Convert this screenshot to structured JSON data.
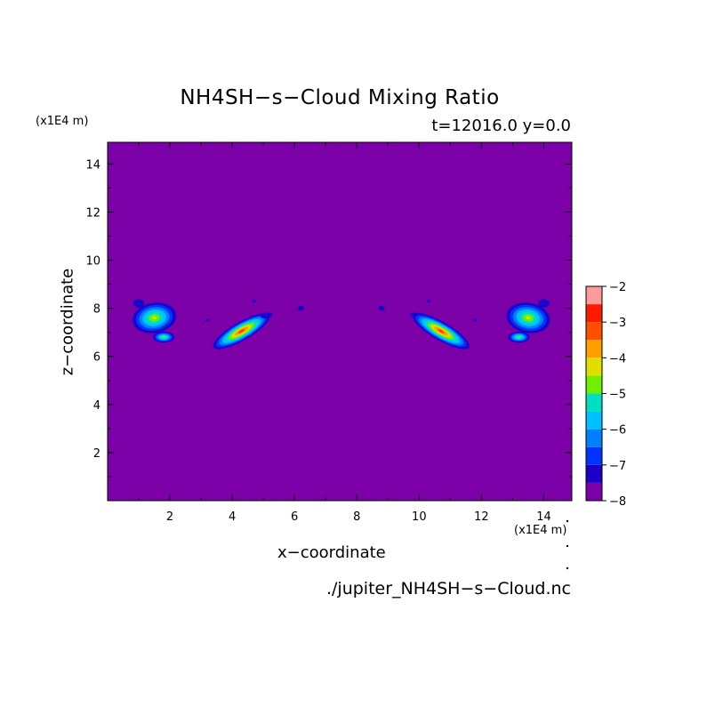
{
  "chart_data": {
    "type": "heatmap",
    "title": "NH4SH−s−Cloud Mixing Ratio",
    "subtitle": "t=12016.0 y=0.0",
    "xlabel": "x−coordinate",
    "ylabel": "z−coordinate",
    "x_unit": "(x1E4 m)",
    "y_unit": "(x1E4 m)",
    "source": "./jupiter_NH4SH−s−Cloud.nc",
    "xlim": [
      0,
      14.9
    ],
    "ylim": [
      0,
      14.9
    ],
    "x_ticks": [
      2,
      4,
      6,
      8,
      10,
      12,
      14
    ],
    "y_ticks": [
      2,
      4,
      6,
      8,
      10,
      12,
      14
    ],
    "x_tick_labels": [
      "2",
      "4",
      "6",
      "8",
      "10",
      "12",
      "14"
    ],
    "y_tick_labels": [
      "2",
      "4",
      "6",
      "8",
      "10",
      "12",
      "14"
    ],
    "background_color": "#7b00a8",
    "colorbar": {
      "levels": [
        -8,
        -7.5,
        -7,
        -6.5,
        -6,
        -5.5,
        -5,
        -4.5,
        -4,
        -3.5,
        -3,
        -2.5,
        -2
      ],
      "colors": [
        "#7b00a8",
        "#1a00c8",
        "#0033ff",
        "#0080ff",
        "#00c0ff",
        "#00e0c0",
        "#70f000",
        "#e0e000",
        "#ffa000",
        "#ff5000",
        "#ff1a00",
        "#ff9a9a"
      ],
      "labels": [
        "−2",
        "−3",
        "−4",
        "−5",
        "−6",
        "−7",
        "−8"
      ],
      "label_values": [
        -2,
        -3,
        -4,
        -5,
        -6,
        -7,
        -8
      ]
    },
    "cloud_blobs": [
      {
        "x": 1.5,
        "z": 7.6,
        "sx": 0.9,
        "sz": 0.8,
        "angle": -10,
        "peak": -4.2
      },
      {
        "x": 1.0,
        "z": 8.2,
        "sx": 0.5,
        "sz": 0.5,
        "angle": 0,
        "peak": -7.0
      },
      {
        "x": 1.8,
        "z": 6.8,
        "sx": 0.45,
        "sz": 0.3,
        "angle": 0,
        "peak": -4.6
      },
      {
        "x": 3.2,
        "z": 7.5,
        "sx": 0.28,
        "sz": 0.24,
        "angle": 0,
        "peak": -7.2
      },
      {
        "x": 4.3,
        "z": 7.05,
        "sx": 1.25,
        "sz": 0.45,
        "angle": -30,
        "peak": -2.9
      },
      {
        "x": 4.7,
        "z": 8.3,
        "sx": 0.28,
        "sz": 0.25,
        "angle": 0,
        "peak": -7.2
      },
      {
        "x": 5.1,
        "z": 7.7,
        "sx": 0.55,
        "sz": 0.32,
        "angle": -10,
        "peak": -7.0
      },
      {
        "x": 6.2,
        "z": 8.0,
        "sx": 0.35,
        "sz": 0.3,
        "angle": -20,
        "peak": -7.1
      },
      {
        "x": 8.8,
        "z": 8.0,
        "sx": 0.35,
        "sz": 0.3,
        "angle": 20,
        "peak": -7.1
      },
      {
        "x": 9.9,
        "z": 7.7,
        "sx": 0.55,
        "sz": 0.32,
        "angle": 10,
        "peak": -7.0
      },
      {
        "x": 10.3,
        "z": 8.3,
        "sx": 0.28,
        "sz": 0.25,
        "angle": 0,
        "peak": -7.2
      },
      {
        "x": 10.7,
        "z": 7.05,
        "sx": 1.25,
        "sz": 0.45,
        "angle": 30,
        "peak": -2.9
      },
      {
        "x": 11.8,
        "z": 7.5,
        "sx": 0.28,
        "sz": 0.24,
        "angle": 0,
        "peak": -7.2
      },
      {
        "x": 13.2,
        "z": 6.8,
        "sx": 0.45,
        "sz": 0.3,
        "angle": 0,
        "peak": -4.6
      },
      {
        "x": 14.0,
        "z": 8.2,
        "sx": 0.5,
        "sz": 0.5,
        "angle": 0,
        "peak": -7.0
      },
      {
        "x": 13.5,
        "z": 7.6,
        "sx": 0.9,
        "sz": 0.8,
        "angle": 10,
        "peak": -4.2
      }
    ]
  }
}
